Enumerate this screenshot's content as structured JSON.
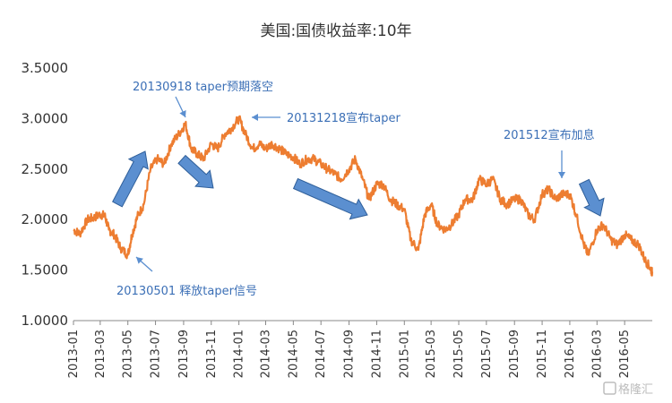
{
  "chart_data": {
    "type": "line",
    "title": "美国:国债收益率:10年",
    "xlabel": "",
    "ylabel": "",
    "ylim": [
      1.0,
      3.5
    ],
    "yticks": [
      "1.0000",
      "1.5000",
      "2.0000",
      "2.5000",
      "3.0000",
      "3.5000"
    ],
    "x_range": [
      "2013-01",
      "2016-07"
    ],
    "x_ticks": [
      "2013-01",
      "2013-03",
      "2013-05",
      "2013-07",
      "2013-09",
      "2013-11",
      "2014-01",
      "2014-03",
      "2014-05",
      "2014-07",
      "2014-09",
      "2014-11",
      "2015-01",
      "2015-03",
      "2015-05",
      "2015-07",
      "2015-09",
      "2015-11",
      "2016-01",
      "2016-03",
      "2016-05"
    ],
    "grid": false,
    "legend": "none",
    "line_color": "#ed7d31",
    "annotation_color": "#3b6fb6",
    "arrow_fill": "#5b8fd0",
    "arrow_stroke": "#2f5f9a",
    "series": [
      {
        "x": [
          "2013-01-01",
          "2013-01-15",
          "2013-02-01",
          "2013-02-15",
          "2013-03-01",
          "2013-03-11",
          "2013-03-20",
          "2013-04-01",
          "2013-04-15",
          "2013-05-01",
          "2013-05-10",
          "2013-05-22",
          "2013-06-05",
          "2013-06-20",
          "2013-07-05",
          "2013-07-20",
          "2013-08-05",
          "2013-08-22",
          "2013-09-05",
          "2013-09-18",
          "2013-10-01",
          "2013-10-15",
          "2013-11-01",
          "2013-11-15",
          "2013-12-01",
          "2013-12-15",
          "2014-01-01",
          "2014-01-15",
          "2014-02-01",
          "2014-02-15",
          "2014-03-01",
          "2014-03-15",
          "2014-04-01",
          "2014-04-15",
          "2014-05-01",
          "2014-05-15",
          "2014-06-01",
          "2014-06-15",
          "2014-07-01",
          "2014-07-15",
          "2014-08-01",
          "2014-08-15",
          "2014-09-01",
          "2014-09-15",
          "2014-10-01",
          "2014-10-15",
          "2014-11-01",
          "2014-11-15",
          "2014-12-01",
          "2014-12-15",
          "2015-01-01",
          "2015-01-15",
          "2015-02-01",
          "2015-02-15",
          "2015-03-01",
          "2015-03-15",
          "2015-04-01",
          "2015-04-15",
          "2015-05-01",
          "2015-05-15",
          "2015-06-01",
          "2015-06-15",
          "2015-07-01",
          "2015-07-15",
          "2015-08-01",
          "2015-08-15",
          "2015-09-01",
          "2015-09-15",
          "2015-10-01",
          "2015-10-15",
          "2015-11-01",
          "2015-11-15",
          "2015-12-01",
          "2015-12-15",
          "2016-01-01",
          "2016-01-15",
          "2016-02-01",
          "2016-02-11",
          "2016-03-01",
          "2016-03-15",
          "2016-04-01",
          "2016-04-15",
          "2016-05-01",
          "2016-05-15",
          "2016-06-01",
          "2016-06-15",
          "2016-06-27",
          "2016-07-01"
        ],
        "y": [
          1.9,
          1.86,
          2.0,
          2.02,
          2.05,
          2.04,
          1.9,
          1.85,
          1.72,
          1.65,
          1.85,
          2.03,
          2.15,
          2.5,
          2.6,
          2.55,
          2.75,
          2.85,
          2.95,
          2.7,
          2.65,
          2.6,
          2.75,
          2.7,
          2.85,
          2.9,
          3.0,
          2.85,
          2.7,
          2.75,
          2.7,
          2.75,
          2.7,
          2.65,
          2.62,
          2.55,
          2.6,
          2.6,
          2.55,
          2.5,
          2.45,
          2.4,
          2.5,
          2.6,
          2.4,
          2.2,
          2.35,
          2.35,
          2.2,
          2.15,
          2.1,
          1.8,
          1.7,
          2.05,
          2.15,
          1.95,
          1.9,
          1.95,
          2.05,
          2.2,
          2.2,
          2.4,
          2.35,
          2.4,
          2.2,
          2.15,
          2.2,
          2.2,
          2.05,
          2.0,
          2.25,
          2.3,
          2.2,
          2.25,
          2.25,
          2.05,
          1.75,
          1.65,
          1.9,
          1.95,
          1.8,
          1.75,
          1.85,
          1.8,
          1.75,
          1.6,
          1.52,
          1.47
        ]
      }
    ],
    "annotations": [
      {
        "text": "20130918 taper预期落空",
        "x": "2013-09-18",
        "y": 2.96
      },
      {
        "text": "20131218宣布taper",
        "x": "2014-01-10",
        "y": 3.0
      },
      {
        "text": "20130501 释放taper信号",
        "x": "2013-05-01",
        "y": 1.65
      },
      {
        "text": "201512宣布加息",
        "x": "2015-12-16",
        "y": 2.37
      }
    ]
  },
  "watermark": "格隆汇"
}
